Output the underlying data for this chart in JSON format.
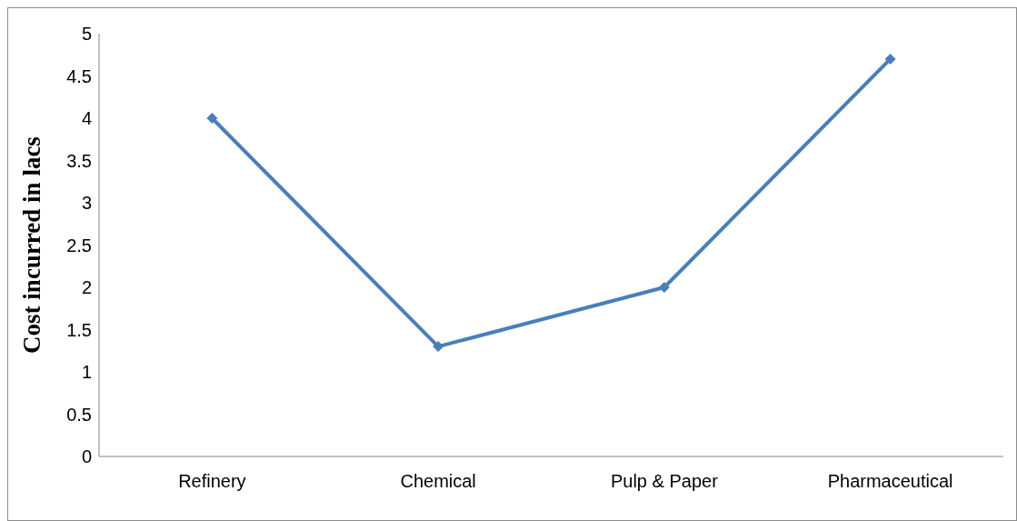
{
  "chart_data": {
    "type": "line",
    "ylabel": "Cost incurred in lacs",
    "categories": [
      "Refinery",
      "Chemical",
      "Pulp & Paper",
      "Pharmaceutical"
    ],
    "series": [
      {
        "color": "#4a7ebb",
        "values": [
          4,
          1.3,
          2,
          4.7
        ]
      }
    ],
    "ylim": [
      0,
      5
    ],
    "yticks": [
      0,
      0.5,
      1,
      1.5,
      2,
      2.5,
      3,
      3.5,
      4,
      4.5,
      5
    ],
    "grid": false,
    "legend": false,
    "marker": "diamond",
    "line_style": "solid"
  }
}
